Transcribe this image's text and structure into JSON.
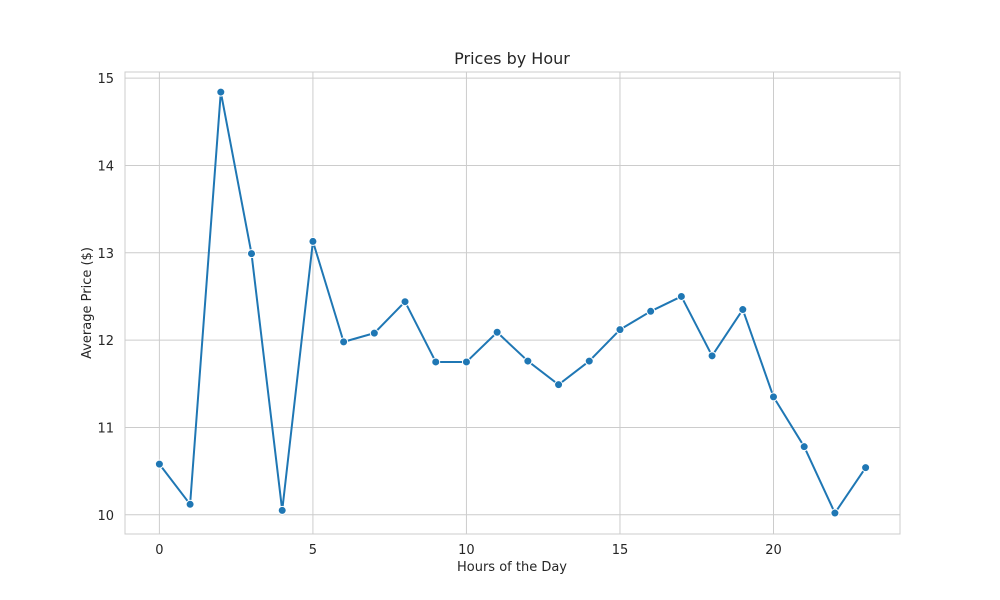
{
  "chart_data": {
    "type": "line",
    "title": "Prices by Hour",
    "xlabel": "Hours of the Day",
    "ylabel": "Average Price ($)",
    "x": [
      0,
      1,
      2,
      3,
      4,
      5,
      6,
      7,
      8,
      9,
      10,
      11,
      12,
      13,
      14,
      15,
      16,
      17,
      18,
      19,
      20,
      21,
      22,
      23
    ],
    "series": [
      {
        "values": [
          10.58,
          10.12,
          14.84,
          12.99,
          10.05,
          13.13,
          11.98,
          12.08,
          12.44,
          11.75,
          11.75,
          12.09,
          11.76,
          11.49,
          11.76,
          12.12,
          12.33,
          12.5,
          11.82,
          12.35,
          11.35,
          10.78,
          10.02,
          10.54
        ],
        "color": "#1f77b4",
        "marker": "circle"
      }
    ],
    "xticks": [
      0,
      5,
      10,
      15,
      20
    ],
    "yticks": [
      10,
      11,
      12,
      13,
      14,
      15
    ],
    "xlim": [
      -1.12,
      24.12
    ],
    "ylim": [
      9.78,
      15.07
    ],
    "grid": true,
    "style": {
      "grid_color": "#cccccc",
      "frame_color": "#cccccc",
      "background": "#ffffff"
    }
  }
}
